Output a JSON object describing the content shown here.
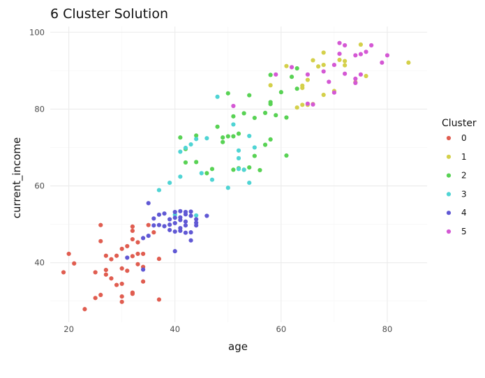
{
  "chart_data": {
    "type": "scatter",
    "title": "6 Cluster Solution",
    "xlabel": "age",
    "ylabel": "current_income",
    "xlim": [
      16.5,
      87.5
    ],
    "ylim": [
      24.5,
      101.5
    ],
    "xticks": [
      20,
      40,
      60,
      80
    ],
    "yticks": [
      40,
      60,
      80,
      100
    ],
    "grid": true,
    "legend": {
      "title": "Cluster",
      "position": "right"
    },
    "series": [
      {
        "name": "0",
        "color": "#e05d50",
        "points": [
          [
            19,
            37.5
          ],
          [
            20,
            42.3
          ],
          [
            21,
            39.8
          ],
          [
            23,
            27.9
          ],
          [
            25,
            30.8
          ],
          [
            25,
            37.5
          ],
          [
            26,
            31.6
          ],
          [
            26,
            45.6
          ],
          [
            26,
            49.8
          ],
          [
            27,
            36.9
          ],
          [
            27,
            38.1
          ],
          [
            27,
            41.8
          ],
          [
            28,
            35.9
          ],
          [
            28,
            40.9
          ],
          [
            29,
            34.2
          ],
          [
            29,
            41.8
          ],
          [
            30,
            29.8
          ],
          [
            30,
            31.2
          ],
          [
            30,
            34.5
          ],
          [
            30,
            38.5
          ],
          [
            30,
            43.6
          ],
          [
            31,
            37.9
          ],
          [
            31,
            44.3
          ],
          [
            32,
            31.9
          ],
          [
            32,
            32.2
          ],
          [
            32,
            41.7
          ],
          [
            32,
            46.1
          ],
          [
            32,
            48.3
          ],
          [
            32,
            49.4
          ],
          [
            33,
            39.6
          ],
          [
            33,
            42.3
          ],
          [
            33,
            45.3
          ],
          [
            34,
            35.1
          ],
          [
            34,
            38.9
          ],
          [
            34,
            42.3
          ],
          [
            35,
            49.8
          ],
          [
            36,
            47.9
          ],
          [
            37,
            30.4
          ],
          [
            37,
            41.0
          ]
        ]
      },
      {
        "name": "1",
        "color": "#d4d04a",
        "points": [
          [
            58,
            86.2
          ],
          [
            61,
            91.2
          ],
          [
            63,
            80.4
          ],
          [
            64,
            81.1
          ],
          [
            64,
            85.5
          ],
          [
            64,
            86.1
          ],
          [
            65,
            81.1
          ],
          [
            65,
            87.6
          ],
          [
            66,
            81.3
          ],
          [
            66,
            92.7
          ],
          [
            67,
            91.1
          ],
          [
            68,
            83.7
          ],
          [
            68,
            91.5
          ],
          [
            68,
            94.7
          ],
          [
            70,
            84.7
          ],
          [
            71,
            92.8
          ],
          [
            72,
            91.4
          ],
          [
            72,
            92.5
          ],
          [
            74,
            87.0
          ],
          [
            75,
            96.8
          ],
          [
            76,
            88.6
          ],
          [
            84,
            92.1
          ]
        ]
      },
      {
        "name": "2",
        "color": "#58d254",
        "points": [
          [
            41,
            72.6
          ],
          [
            42,
            66.1
          ],
          [
            42,
            69.6
          ],
          [
            44,
            66.2
          ],
          [
            44,
            73.1
          ],
          [
            46,
            63.3
          ],
          [
            47,
            64.4
          ],
          [
            48,
            75.4
          ],
          [
            49,
            71.4
          ],
          [
            49,
            72.6
          ],
          [
            50,
            72.9
          ],
          [
            50,
            84.1
          ],
          [
            51,
            64.2
          ],
          [
            51,
            72.9
          ],
          [
            51,
            78.1
          ],
          [
            52,
            64.6
          ],
          [
            52,
            73.6
          ],
          [
            53,
            64.2
          ],
          [
            53,
            78.9
          ],
          [
            54,
            64.8
          ],
          [
            54,
            83.6
          ],
          [
            55,
            67.8
          ],
          [
            55,
            77.7
          ],
          [
            56,
            64.1
          ],
          [
            57,
            70.7
          ],
          [
            57,
            79.0
          ],
          [
            58,
            72.1
          ],
          [
            58,
            81.3
          ],
          [
            58,
            81.8
          ],
          [
            58,
            88.9
          ],
          [
            59,
            78.4
          ],
          [
            60,
            84.4
          ],
          [
            61,
            67.9
          ],
          [
            61,
            77.8
          ],
          [
            62,
            88.4
          ],
          [
            63,
            85.3
          ],
          [
            63,
            90.6
          ]
        ]
      },
      {
        "name": "3",
        "color": "#4fd4d4",
        "points": [
          [
            37,
            58.9
          ],
          [
            39,
            60.8
          ],
          [
            40,
            52.5
          ],
          [
            41,
            62.4
          ],
          [
            41,
            68.9
          ],
          [
            42,
            69.9
          ],
          [
            43,
            70.8
          ],
          [
            44,
            72.2
          ],
          [
            44,
            52.3
          ],
          [
            45,
            63.3
          ],
          [
            46,
            72.4
          ],
          [
            47,
            61.6
          ],
          [
            48,
            83.2
          ],
          [
            50,
            59.5
          ],
          [
            51,
            76.0
          ],
          [
            52,
            64.4
          ],
          [
            52,
            67.2
          ],
          [
            52,
            69.2
          ],
          [
            53,
            64.2
          ],
          [
            54,
            60.8
          ],
          [
            54,
            73.0
          ],
          [
            55,
            70.0
          ]
        ]
      },
      {
        "name": "4",
        "color": "#6058d4",
        "points": [
          [
            31,
            41.3
          ],
          [
            34,
            38.2
          ],
          [
            34,
            46.4
          ],
          [
            35,
            47.0
          ],
          [
            35,
            55.5
          ],
          [
            36,
            49.7
          ],
          [
            36,
            51.5
          ],
          [
            37,
            49.8
          ],
          [
            37,
            52.5
          ],
          [
            38,
            49.5
          ],
          [
            38,
            52.8
          ],
          [
            39,
            48.5
          ],
          [
            39,
            49.9
          ],
          [
            39,
            51.3
          ],
          [
            40,
            43.0
          ],
          [
            40,
            48.1
          ],
          [
            40,
            50.3
          ],
          [
            40,
            51.7
          ],
          [
            40,
            53.2
          ],
          [
            41,
            48.3
          ],
          [
            41,
            49.0
          ],
          [
            41,
            51.1
          ],
          [
            41,
            51.8
          ],
          [
            41,
            53.4
          ],
          [
            42,
            47.8
          ],
          [
            42,
            49.7
          ],
          [
            42,
            50.7
          ],
          [
            42,
            52.6
          ],
          [
            42,
            53.2
          ],
          [
            43,
            45.8
          ],
          [
            43,
            47.9
          ],
          [
            43,
            52.2
          ],
          [
            43,
            53.3
          ],
          [
            44,
            49.7
          ],
          [
            44,
            50.4
          ],
          [
            44,
            51.3
          ],
          [
            46,
            52.2
          ]
        ]
      },
      {
        "name": "5",
        "color": "#d458d4",
        "points": [
          [
            51,
            80.8
          ],
          [
            59,
            89.0
          ],
          [
            62,
            90.9
          ],
          [
            65,
            81.4
          ],
          [
            65,
            89.0
          ],
          [
            66,
            81.2
          ],
          [
            68,
            89.8
          ],
          [
            69,
            87.1
          ],
          [
            70,
            84.3
          ],
          [
            70,
            91.5
          ],
          [
            71,
            94.4
          ],
          [
            71,
            97.2
          ],
          [
            72,
            89.2
          ],
          [
            72,
            96.6
          ],
          [
            74,
            86.8
          ],
          [
            74,
            87.9
          ],
          [
            74,
            94.0
          ],
          [
            75,
            89.0
          ],
          [
            75,
            94.3
          ],
          [
            76,
            94.9
          ],
          [
            77,
            96.6
          ],
          [
            79,
            92.1
          ],
          [
            80,
            94.0
          ]
        ]
      }
    ]
  }
}
